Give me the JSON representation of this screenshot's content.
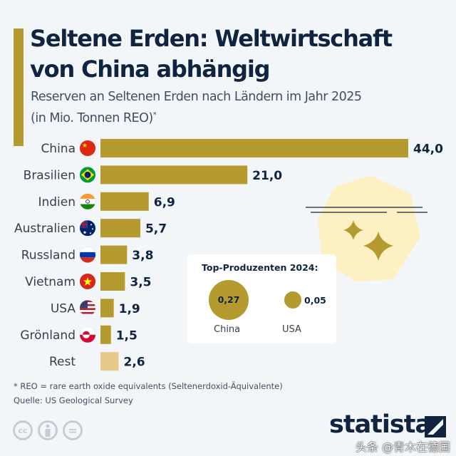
{
  "header": {
    "title": "Seltene Erden: Weltwirtschaft von China abhängig",
    "subtitle_line1": "Reserven an Seltenen Erden nach Ländern im Jahr 2025",
    "subtitle_line2": "(in Mio. Tonnen REO)",
    "subtitle_mark": "*"
  },
  "chart_data": {
    "type": "bar",
    "orientation": "horizontal",
    "title": "Seltene Erden: Weltwirtschaft von China abhängig",
    "subtitle": "Reserven an Seltenen Erden nach Ländern im Jahr 2025 (in Mio. Tonnen REO)*",
    "xlabel": "",
    "ylabel": "",
    "unit": "Mio. Tonnen REO",
    "xlim": [
      0,
      44
    ],
    "grid": false,
    "categories": [
      "China",
      "Brasilien",
      "Indien",
      "Australien",
      "Russland",
      "Vietnam",
      "USA",
      "Grönland",
      "Rest"
    ],
    "values": [
      44.0,
      21.0,
      6.9,
      5.7,
      3.8,
      3.5,
      1.9,
      1.5,
      2.6
    ],
    "value_labels": [
      "44,0",
      "21,0",
      "6,9",
      "5,7",
      "3,8",
      "3,5",
      "1,9",
      "1,5",
      "2,6"
    ],
    "flags": [
      "flag-china",
      "flag-brazil",
      "flag-india",
      "flag-australia",
      "flag-russia",
      "flag-vietnam",
      "flag-usa",
      "flag-greenland",
      null
    ],
    "bar_color": "#b59a30",
    "rest_color": "#e8c98a"
  },
  "producers": {
    "title": "Top-Produzenten 2024:",
    "items": [
      {
        "country": "China",
        "value": 0.27,
        "label": "0,27"
      },
      {
        "country": "USA",
        "value": 0.05,
        "label": "0,05"
      }
    ]
  },
  "footer": {
    "footnote": "* REO = rare earth oxide equivalents (Seltenerdoxid-Äquivalente)",
    "source": "Quelle: US Geological Survey",
    "license_icons": [
      "cc-icon",
      "by-icon",
      "nd-icon"
    ],
    "cc_label": "cc",
    "nd_label": "=",
    "brand": "statista",
    "watermark": "头条 @青木在德国"
  },
  "colors": {
    "accent": "#b59a30",
    "title": "#10243f",
    "background": "#f3f6f9",
    "deco_fill": "#fdf0c2"
  }
}
